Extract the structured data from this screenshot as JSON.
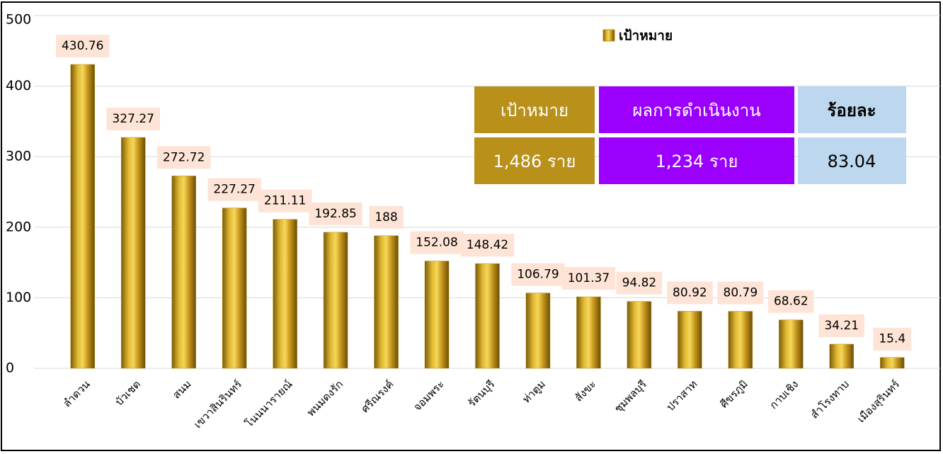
{
  "chart_data": {
    "type": "bar",
    "categories": [
      "ลำดวน",
      "บัวเชด",
      "สนม",
      "เขวาสินรินทร์",
      "โนนนารายณ์",
      "พนมดงรัก",
      "ศรีณรงค์",
      "จอมพระ",
      "รัตนบุรี",
      "ท่าตูม",
      "สังขะ",
      "ชุมพลบุรี",
      "ปราสาท",
      "ศีขรภูมิ",
      "กาบเชิง",
      "สำโรงทาบ",
      "เมืองสุรินทร์"
    ],
    "series": [
      {
        "name": "เป้าหมาย",
        "color": "#b8901a",
        "values": [
          430.76,
          327.27,
          272.72,
          227.27,
          211.11,
          192.85,
          188,
          152.08,
          148.42,
          106.79,
          101.37,
          94.82,
          80.92,
          80.79,
          68.62,
          34.21,
          15.4
        ]
      }
    ],
    "ylim": [
      0,
      500
    ],
    "yticks": [
      0,
      100,
      200,
      300,
      400,
      500
    ],
    "grid": true,
    "legend": "top-right"
  },
  "table": {
    "header": [
      "เป้าหมาย",
      "ผลการดำเนินงาน",
      "ร้อยละ"
    ],
    "row": [
      "1,486 ราย",
      "1,234 ราย",
      "83.04"
    ]
  }
}
